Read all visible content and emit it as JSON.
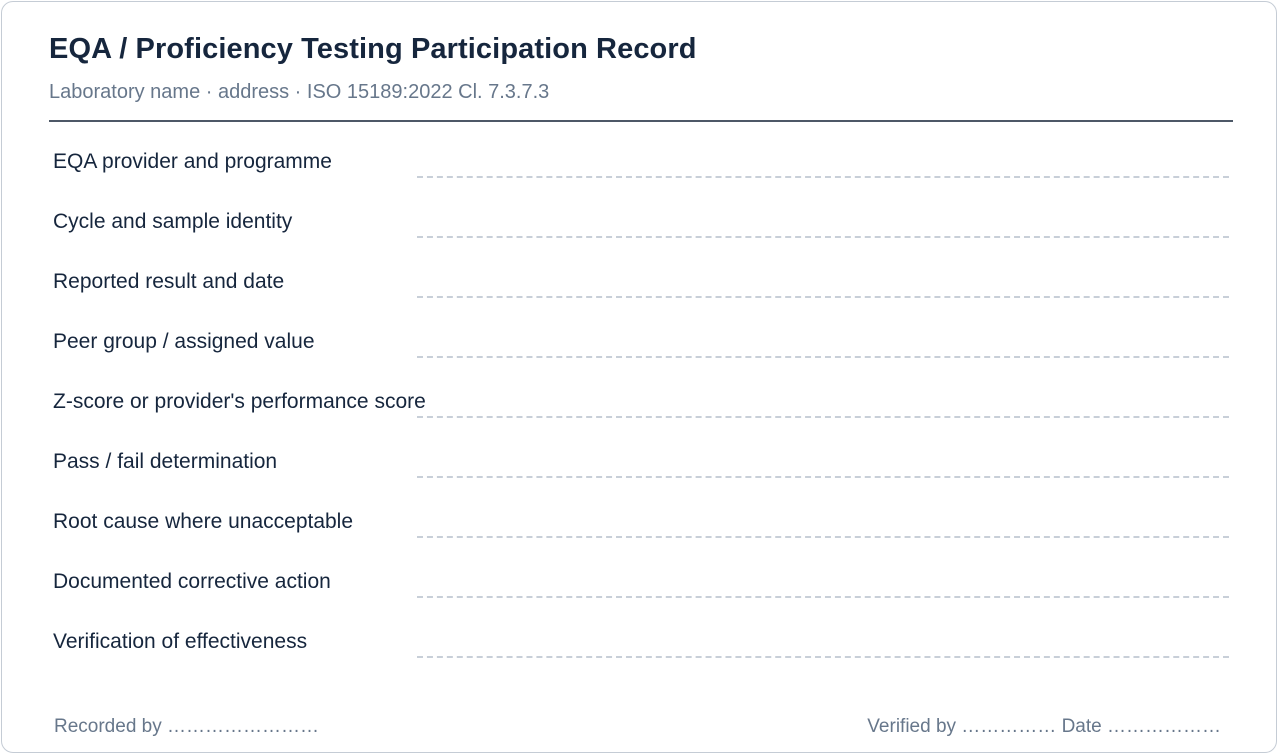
{
  "form": {
    "title": "EQA / Proficiency Testing Participation Record",
    "subtitle": "Laboratory name · address · ISO 15189:2022 Cl. 7.3.7.3",
    "fields": [
      {
        "label": "EQA provider and programme",
        "value": ""
      },
      {
        "label": "Cycle and sample identity",
        "value": ""
      },
      {
        "label": "Reported result and date",
        "value": ""
      },
      {
        "label": "Peer group / assigned value",
        "value": ""
      },
      {
        "label": "Z-score or provider's performance score",
        "value": ""
      },
      {
        "label": "Pass / fail determination",
        "value": ""
      },
      {
        "label": "Root cause where unacceptable",
        "value": ""
      },
      {
        "label": "Documented corrective action",
        "value": ""
      },
      {
        "label": "Verification of effectiveness",
        "value": ""
      }
    ],
    "footer": {
      "recorded_by": "Recorded by ……………………",
      "verified_by": "Verified by …………… Date ………………"
    }
  }
}
